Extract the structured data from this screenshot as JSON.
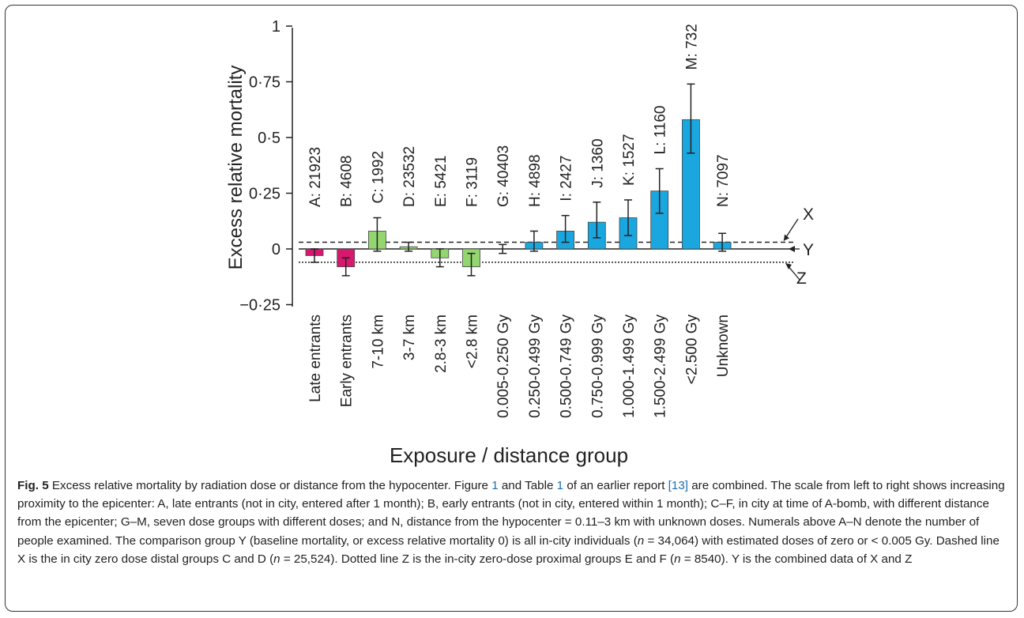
{
  "chart_data": {
    "type": "bar",
    "xlabel": "Exposure / distance group",
    "ylabel": "Excess relative mortality",
    "ylim": [
      -0.25,
      1
    ],
    "yticks": [
      {
        "value": 1,
        "label": "1"
      },
      {
        "value": 0.75,
        "label": "0·75"
      },
      {
        "value": 0.5,
        "label": "0·5"
      },
      {
        "value": 0.25,
        "label": "0·25"
      },
      {
        "value": 0,
        "label": "0"
      },
      {
        "value": -0.25,
        "label": "−0·25"
      }
    ],
    "categories": [
      "Late entrants",
      "Early entrants",
      "7-10 km",
      "3-7 km",
      "2.8-3 km",
      "<2.8 km",
      "0.005-0.250 Gy",
      "0.250-0.499 Gy",
      "0.500-0.749 Gy",
      "0.750-0.999 Gy",
      "1.000-1.499 Gy",
      "1.500-2.499 Gy",
      "<2.500 Gy",
      "Unknown"
    ],
    "counts": [
      "A: 21923",
      "B: 4608",
      "C: 1992",
      "D: 23532",
      "E: 5421",
      "F: 3119",
      "G: 40403",
      "H: 4898",
      "I: 2427",
      "J: 1360",
      "K: 1527",
      "L: 1160",
      "M: 732",
      "N: 7097"
    ],
    "values": [
      -0.03,
      -0.08,
      0.08,
      0.01,
      -0.04,
      -0.08,
      0.0,
      0.03,
      0.08,
      0.12,
      0.14,
      0.26,
      0.58,
      0.03
    ],
    "errors_low": [
      -0.06,
      -0.12,
      -0.01,
      -0.01,
      -0.08,
      -0.12,
      -0.02,
      -0.01,
      0.03,
      0.05,
      0.06,
      0.16,
      0.43,
      -0.01
    ],
    "errors_high": [
      0.0,
      -0.04,
      0.14,
      0.03,
      0.0,
      -0.02,
      0.02,
      0.08,
      0.15,
      0.21,
      0.22,
      0.36,
      0.74,
      0.07
    ],
    "groups": [
      "entrant",
      "entrant",
      "distance",
      "distance",
      "distance",
      "distance",
      "dose",
      "dose",
      "dose",
      "dose",
      "dose",
      "dose",
      "dose",
      "dose"
    ],
    "colors": {
      "entrant": "#d6186e",
      "distance": "#93d66f",
      "dose": "#1aa7e0"
    },
    "reference_lines": [
      {
        "name": "X",
        "value": 0.03,
        "style": "dashed"
      },
      {
        "name": "Y",
        "value": 0,
        "style": "solid"
      },
      {
        "name": "Z",
        "value": -0.06,
        "style": "dotted"
      }
    ]
  },
  "caption": {
    "lead": "Fig. 5",
    "s1": " Excess relative mortality by radiation dose or distance from the hypocenter. Figure ",
    "ref1": "1",
    "s2": " and Table ",
    "ref2": "1",
    "s3": " of an earlier report ",
    "ref3": "[13]",
    "s4": " are combined. The scale from left to right shows increasing proximity to the epicenter: A, late entrants (not in city, entered after 1 month); B, early entrants (not in city, entered within 1 month); C–F, in city at time of A-bomb, with different distance from the epicenter; G–M, seven dose groups with different doses; and N, distance from the hypocenter = 0.11–3 km with unknown doses. Numerals above A–N denote the number of people examined. The comparison group Y (baseline mortality, or excess relative mortality 0) is all in-city individuals (",
    "n1": "n",
    "s5": " = 34,064) with estimated doses of zero or < 0.005 Gy. Dashed line X is the in city zero dose distal groups C and D (",
    "n2": "n",
    "s6": " = 25,524). Dotted line Z is the in-city zero-dose proximal groups E and F (",
    "n3": "n",
    "s7": " = 8540). Y is the combined data of X and Z"
  }
}
